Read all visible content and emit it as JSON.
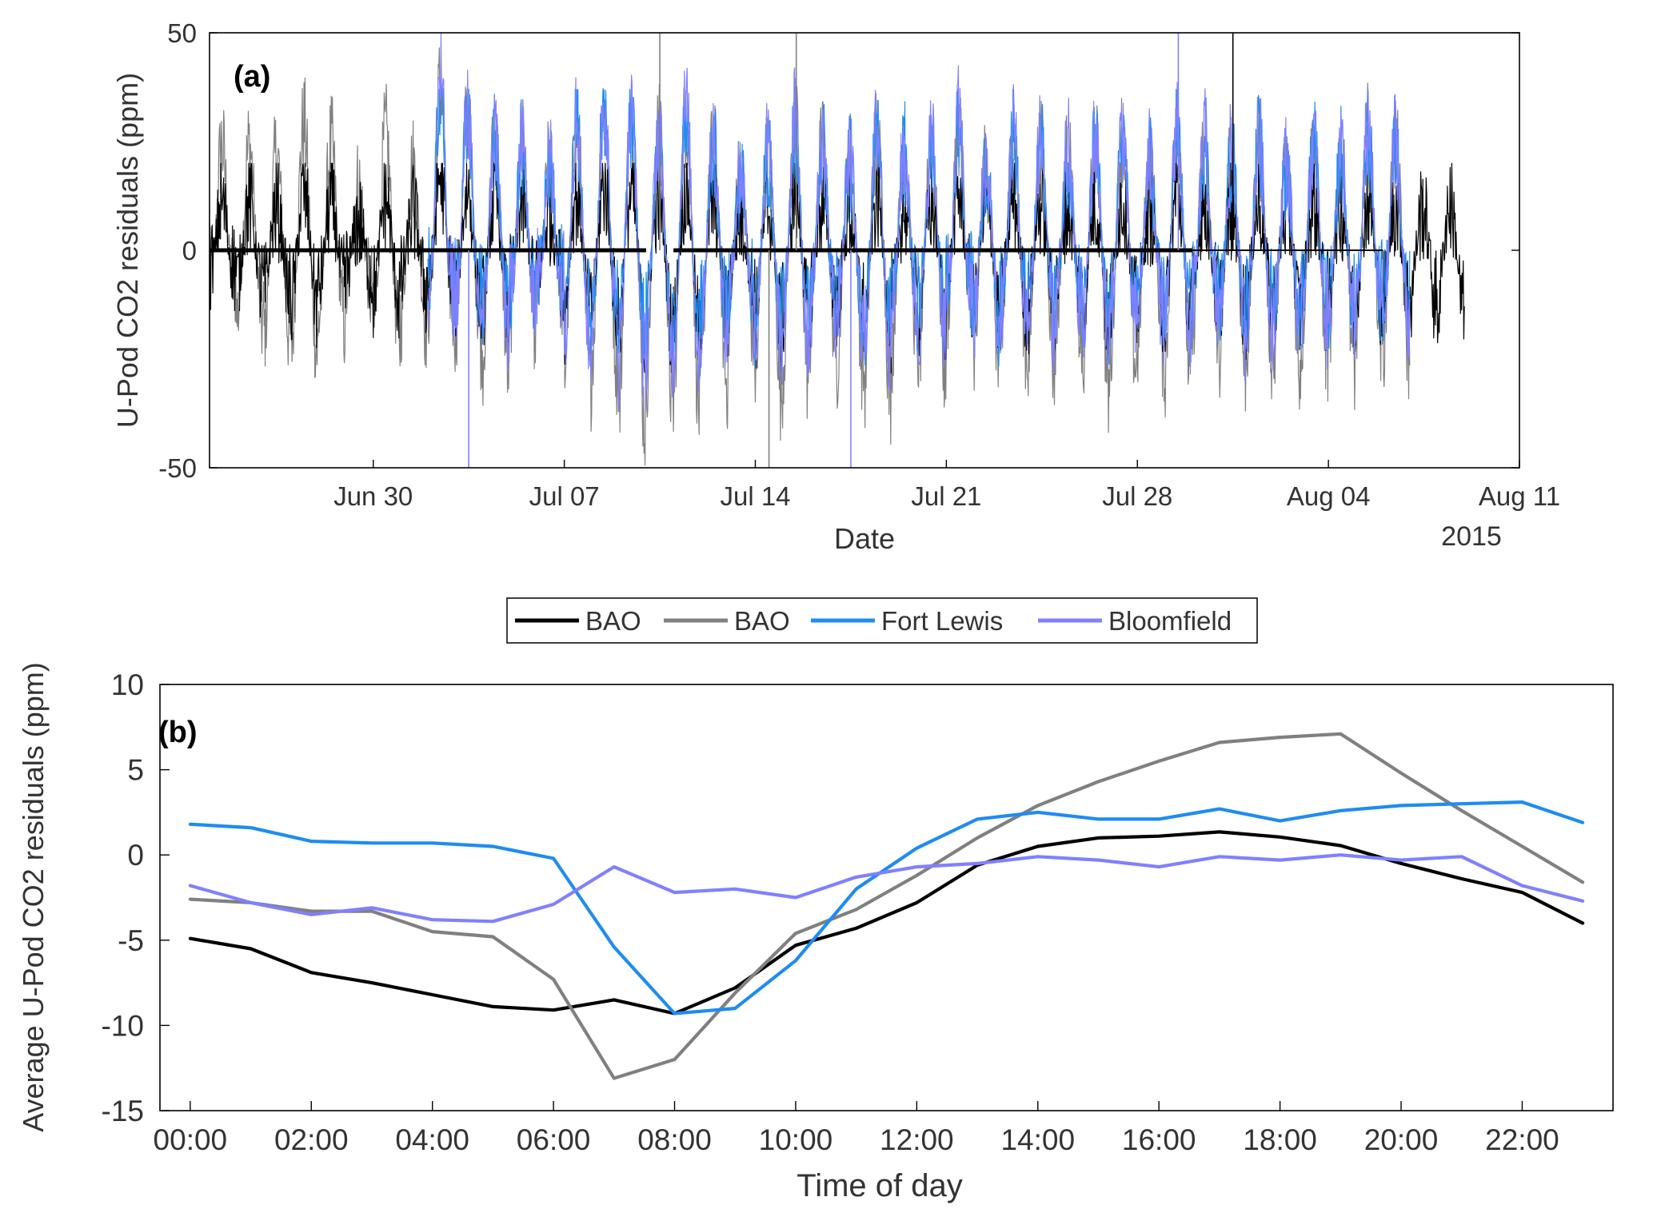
{
  "chart_data": [
    {
      "type": "line",
      "panel_label": "(a)",
      "xlabel": "Date",
      "ylabel": "U-Pod CO2  residuals (ppm)",
      "year_label": "2015",
      "xlim": [
        "2015-06-24",
        "2015-08-11"
      ],
      "ylim": [
        -50,
        50
      ],
      "x_ticks": [
        {
          "date": "2015-06-30",
          "label": "Jun 30"
        },
        {
          "date": "2015-07-07",
          "label": "Jul 07"
        },
        {
          "date": "2015-07-14",
          "label": "Jul 14"
        },
        {
          "date": "2015-07-21",
          "label": "Jul 21"
        },
        {
          "date": "2015-07-28",
          "label": "Jul 28"
        },
        {
          "date": "2015-08-04",
          "label": "Aug 04"
        },
        {
          "date": "2015-08-11",
          "label": "Aug 11"
        }
      ],
      "y_ticks": [
        {
          "value": -50,
          "label": "-50"
        },
        {
          "value": 0,
          "label": "0"
        },
        {
          "value": 50,
          "label": "50"
        }
      ],
      "grid": false,
      "series": [
        {
          "name": "BAO",
          "color": "#000000",
          "date_range": [
            "2015-06-24",
            "2015-08-09"
          ],
          "approx_range": [
            -35,
            20
          ]
        },
        {
          "name": "BAO",
          "color": "#808080",
          "date_range": [
            "2015-06-24",
            "2015-08-07"
          ],
          "approx_range": [
            -50,
            50
          ]
        },
        {
          "name": "Fort Lewis",
          "color": "#1f8cf0",
          "date_range": [
            "2015-07-02",
            "2015-08-07"
          ],
          "approx_range": [
            -33,
            37
          ]
        },
        {
          "name": "Bloomfield",
          "color": "#8080ff",
          "date_range": [
            "2015-07-02",
            "2015-08-07"
          ],
          "approx_range": [
            -50,
            50
          ]
        }
      ]
    },
    {
      "type": "line",
      "panel_label": "(b)",
      "xlabel": "Time of day",
      "ylabel": "Average U-Pod CO2 residuals (ppm)",
      "xlim": [
        -0.5,
        23.5
      ],
      "ylim": [
        -15,
        10
      ],
      "x": [
        0,
        1,
        2,
        3,
        4,
        5,
        6,
        7,
        8,
        9,
        10,
        11,
        12,
        13,
        14,
        15,
        16,
        17,
        18,
        19,
        20,
        21,
        22,
        23
      ],
      "x_ticks": [
        {
          "value": 0,
          "label": "00:00"
        },
        {
          "value": 2,
          "label": "02:00"
        },
        {
          "value": 4,
          "label": "04:00"
        },
        {
          "value": 6,
          "label": "06:00"
        },
        {
          "value": 8,
          "label": "08:00"
        },
        {
          "value": 10,
          "label": "10:00"
        },
        {
          "value": 12,
          "label": "12:00"
        },
        {
          "value": 14,
          "label": "14:00"
        },
        {
          "value": 16,
          "label": "16:00"
        },
        {
          "value": 18,
          "label": "18:00"
        },
        {
          "value": 20,
          "label": "20:00"
        },
        {
          "value": 22,
          "label": "22:00"
        }
      ],
      "y_ticks": [
        {
          "value": -15,
          "label": "-15"
        },
        {
          "value": -10,
          "label": "-10"
        },
        {
          "value": -5,
          "label": "-5"
        },
        {
          "value": 0,
          "label": "0"
        },
        {
          "value": 5,
          "label": "5"
        },
        {
          "value": 10,
          "label": "10"
        }
      ],
      "grid": false,
      "legend_position": "top-center, outside",
      "series": [
        {
          "name": "BAO",
          "color": "#000000",
          "values": [
            -4.9,
            -5.5,
            -6.9,
            -7.5,
            -8.2,
            -8.9,
            -9.1,
            -8.5,
            -9.3,
            -7.8,
            -5.3,
            -4.3,
            -2.8,
            -0.6,
            0.5,
            1.0,
            1.1,
            1.35,
            1.05,
            0.55,
            -0.5,
            -1.4,
            -2.2,
            -4.0
          ]
        },
        {
          "name": "BAO",
          "color": "#808080",
          "values": [
            -2.6,
            -2.8,
            -3.3,
            -3.3,
            -4.5,
            -4.8,
            -7.3,
            -13.1,
            -12.0,
            -8.1,
            -4.6,
            -3.2,
            -1.2,
            1.0,
            2.9,
            4.3,
            5.5,
            6.6,
            6.9,
            7.1,
            4.8,
            2.6,
            0.5,
            -1.6
          ]
        },
        {
          "name": "Fort Lewis",
          "color": "#1f8cf0",
          "values": [
            1.8,
            1.6,
            0.8,
            0.7,
            0.7,
            0.5,
            -0.2,
            -5.4,
            -9.3,
            -9.0,
            -6.2,
            -2.0,
            0.4,
            2.1,
            2.5,
            2.1,
            2.1,
            2.7,
            2.0,
            2.6,
            2.9,
            3.0,
            3.1,
            1.9
          ]
        },
        {
          "name": "Bloomfield",
          "color": "#8080ff",
          "values": [
            -1.8,
            -2.8,
            -3.5,
            -3.1,
            -3.8,
            -3.9,
            -2.9,
            -0.7,
            -2.2,
            -2.0,
            -2.5,
            -1.3,
            -0.7,
            -0.5,
            -0.1,
            -0.3,
            -0.7,
            -0.1,
            -0.3,
            0.0,
            -0.3,
            -0.1,
            -1.8,
            -2.7
          ]
        }
      ]
    }
  ]
}
